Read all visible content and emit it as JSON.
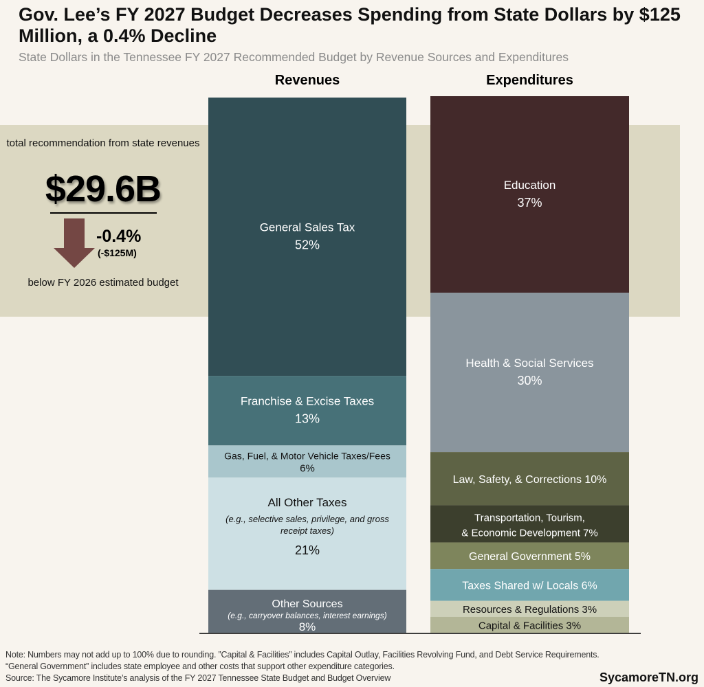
{
  "title": "Gov. Lee’s FY 2027 Budget Decreases Spending from State Dollars by $125 Million, a 0.4% Decline",
  "subtitle": "State Dollars in the Tennessee FY 2027 Recommended Budget by Revenue Sources and Expenditures",
  "callout": {
    "label": "total recommendation from state revenues",
    "total": "$29.6B",
    "change_pct": "-0.4%",
    "change_abs": "(-$125M)",
    "comparison": "below FY 2026 estimated budget",
    "arrow_color": "#744744"
  },
  "notes": [
    "Note: Numbers may not add up to 100% due to rounding. ”Capital & Facilities” includes Capital Outlay, Facilities Revolving Fund, and Debt Service Requirements.",
    "“General Government” includes state employee and other costs that support other expenditure categories.",
    "Source: The Sycamore Institute’s analysis of the FY 2027 Tennessee State Budget and Budget Overview"
  ],
  "brand": "SycamoreTN.org",
  "chart_data": {
    "type": "bar",
    "stacked": true,
    "unit": "%",
    "categories": [
      "Revenues",
      "Expenditures"
    ],
    "columns": [
      {
        "name": "Revenues",
        "segments": [
          {
            "label": "General Sales Tax",
            "value": 52,
            "color": "#314e55",
            "text_color": "#ffffff"
          },
          {
            "label": "Franchise & Excise Taxes",
            "value": 13,
            "color": "#477178",
            "text_color": "#ffffff"
          },
          {
            "label": "Gas, Fuel, & Motor Vehicle Taxes/Fees",
            "value": 6,
            "color": "#a9c6cc",
            "text_color": "#111111"
          },
          {
            "label": "All Other Taxes",
            "sublabel": "(e.g., selective sales, privilege, and gross receipt taxes)",
            "value": 21,
            "color": "#cde0e4",
            "text_color": "#111111"
          },
          {
            "label": "Other Sources",
            "sublabel": "(e.g., carryover balances, interest earnings)",
            "value": 8,
            "color": "#636e77",
            "text_color": "#ffffff"
          }
        ]
      },
      {
        "name": "Expenditures",
        "segments": [
          {
            "label": "Education",
            "value": 37,
            "color": "#43292a",
            "text_color": "#ffffff"
          },
          {
            "label": "Health & Social Services",
            "value": 30,
            "color": "#8a959d",
            "text_color": "#ffffff"
          },
          {
            "label": "Law, Safety, & Corrections",
            "value": 10,
            "color": "#5e6345",
            "text_color": "#ffffff"
          },
          {
            "label": "Transportation, Tourism, & Economic Development",
            "value": 7,
            "color": "#3c3f2d",
            "text_color": "#ffffff"
          },
          {
            "label": "General Government",
            "value": 5,
            "color": "#7e855c",
            "text_color": "#ffffff"
          },
          {
            "label": "Taxes Shared w/ Locals",
            "value": 6,
            "color": "#71a6ae",
            "text_color": "#ffffff"
          },
          {
            "label": "Resources & Regulations",
            "value": 3,
            "color": "#cdd0b9",
            "text_color": "#111111"
          },
          {
            "label": "Capital & Facilities",
            "value": 3,
            "color": "#b3b697",
            "text_color": "#111111"
          }
        ]
      }
    ]
  }
}
